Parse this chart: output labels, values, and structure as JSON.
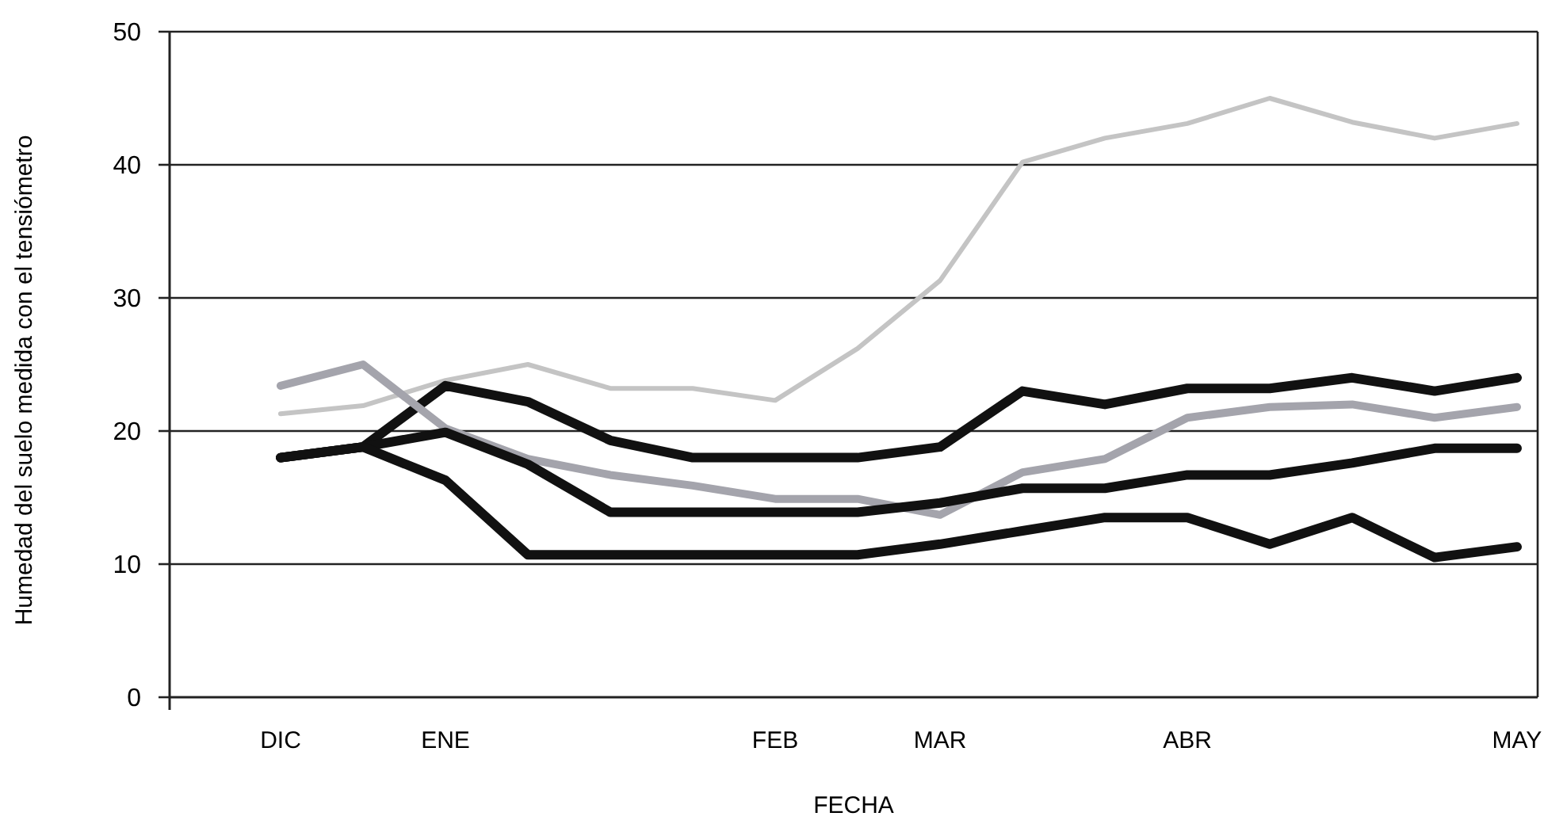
{
  "chart_data": {
    "type": "line",
    "xlabel": "FECHA",
    "ylabel": "Humedad del suelo medida con el tensiómetro",
    "categories": [
      "DIC",
      null,
      "ENE",
      null,
      null,
      null,
      "FEB",
      null,
      "MAR",
      null,
      null,
      "ABR",
      null,
      null,
      null,
      "MAY"
    ],
    "ylim": [
      0,
      50
    ],
    "yticks": [
      0,
      10,
      20,
      30,
      40,
      50
    ],
    "grid": "y",
    "marker": "none",
    "line_style": "solid",
    "series": [
      {
        "color": "#c4c4c4",
        "values": [
          21.3,
          21.9,
          23.8,
          25,
          23.2,
          23.2,
          22.3,
          26.2,
          31.3,
          40.2,
          42,
          43.1,
          45,
          43.2,
          42,
          43.1
        ]
      },
      {
        "color": "#111111",
        "values": [
          18,
          18.8,
          23.4,
          22.2,
          19.3,
          18,
          18,
          18,
          18.8,
          23,
          22,
          23.2,
          23.2,
          24,
          23,
          24
        ]
      },
      {
        "color": "#a4a4ac",
        "values": [
          23.4,
          25,
          20.2,
          17.9,
          16.7,
          15.9,
          14.9,
          14.9,
          13.7,
          16.9,
          17.9,
          21,
          21.8,
          22,
          21,
          21.8
        ]
      },
      {
        "color": "#111111",
        "values": [
          18,
          18.8,
          19.9,
          17.5,
          13.9,
          13.9,
          13.9,
          13.9,
          14.6,
          15.7,
          15.7,
          16.7,
          16.7,
          17.6,
          18.7,
          18.7
        ]
      },
      {
        "color": "#111111",
        "values": [
          18,
          18.8,
          16.3,
          10.7,
          10.7,
          10.7,
          10.7,
          10.7,
          11.5,
          12.5,
          13.5,
          13.5,
          11.5,
          13.5,
          10.5,
          11.3
        ]
      }
    ]
  }
}
